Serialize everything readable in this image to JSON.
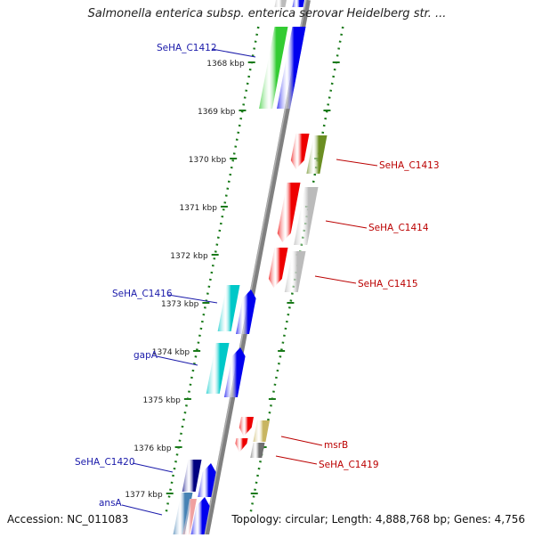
{
  "title": "Salmonella enterica subsp. enterica serovar Heidelberg str. ...",
  "accession": "Accession: NC_011083",
  "topology": "Topology: circular; Length: 4,888,768 bp; Genes: 4,756",
  "ticks": [
    {
      "label": "1368 kbp",
      "kbp": 1368
    },
    {
      "label": "1369 kbp",
      "kbp": 1369
    },
    {
      "label": "1370 kbp",
      "kbp": 1370
    },
    {
      "label": "1371 kbp",
      "kbp": 1371
    },
    {
      "label": "1372 kbp",
      "kbp": 1372
    },
    {
      "label": "1373 kbp",
      "kbp": 1373
    },
    {
      "label": "1374 kbp",
      "kbp": 1374
    },
    {
      "label": "1375 kbp",
      "kbp": 1375
    },
    {
      "label": "1376 kbp",
      "kbp": 1376
    },
    {
      "label": "1377 kbp",
      "kbp": 1377
    }
  ],
  "gene_labels": [
    {
      "label": "SeHA_C1412",
      "color": "#1a1aaa",
      "side": "left"
    },
    {
      "label": "SeHA_C1413",
      "color": "#bb0000",
      "side": "right"
    },
    {
      "label": "SeHA_C1414",
      "color": "#bb0000",
      "side": "right"
    },
    {
      "label": "SeHA_C1415",
      "color": "#bb0000",
      "side": "right"
    },
    {
      "label": "SeHA_C1416",
      "color": "#1a1aaa",
      "side": "left"
    },
    {
      "label": "gapA",
      "color": "#1a1aaa",
      "side": "left"
    },
    {
      "label": "msrB",
      "color": "#bb0000",
      "side": "right"
    },
    {
      "label": "SeHA_C1419",
      "color": "#bb0000",
      "side": "right"
    },
    {
      "label": "SeHA_C1420",
      "color": "#1a1aaa",
      "side": "left"
    },
    {
      "label": "ansA",
      "color": "#1a1aaa",
      "side": "left"
    }
  ],
  "colors": {
    "backbone": "#808080",
    "tick": "#1a7a1a",
    "forward_gene": "#0000ee",
    "reverse_gene": "#ee0000",
    "cds_green": "#33cc33",
    "cds_cyan": "#00c8c8",
    "cds_olive": "#6b8e23",
    "cds_gray": "#bbbbbb",
    "cds_navy": "#000080",
    "cds_tan": "#c8b560",
    "cds_darkgray": "#707070",
    "cds_steel": "#4682b4",
    "cds_pink": "#f0a0a0"
  }
}
